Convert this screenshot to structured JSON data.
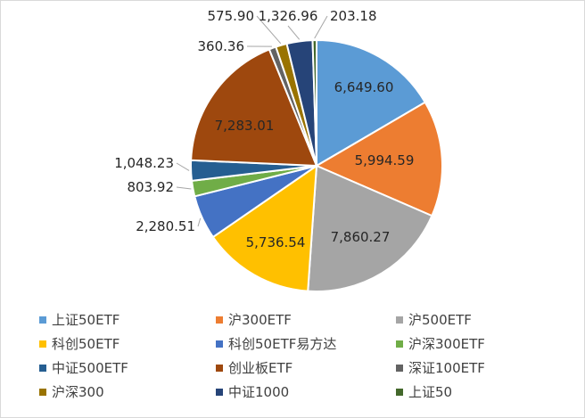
{
  "chart_data": {
    "type": "pie",
    "title": "",
    "series": [
      {
        "name": "上证50ETF",
        "value": 6649.6,
        "label": "6,649.60",
        "color": "#5b9bd5"
      },
      {
        "name": "沪300ETF",
        "value": 5994.59,
        "label": "5,994.59",
        "color": "#ed7d31"
      },
      {
        "name": "沪500ETF",
        "value": 7860.27,
        "label": "7,860.27",
        "color": "#a5a5a5"
      },
      {
        "name": "科创50ETF",
        "value": 5736.54,
        "label": "5,736.54",
        "color": "#ffc000"
      },
      {
        "name": "科创50ETF易方达",
        "value": 2280.51,
        "label": "2,280.51",
        "color": "#4472c4"
      },
      {
        "name": "沪深300ETF",
        "value": 803.92,
        "label": "803.92",
        "color": "#70ad47"
      },
      {
        "name": "中证500ETF",
        "value": 1048.23,
        "label": "1,048.23",
        "color": "#255e91"
      },
      {
        "name": "创业板ETF",
        "value": 7283.01,
        "label": "7,283.01",
        "color": "#9e480e"
      },
      {
        "name": "深证100ETF",
        "value": 360.36,
        "label": "360.36",
        "color": "#636363"
      },
      {
        "name": "沪深300",
        "value": 575.9,
        "label": "575.90",
        "color": "#997300"
      },
      {
        "name": "中证1000",
        "value": 1326.96,
        "label": "1,326.96",
        "color": "#264478"
      },
      {
        "name": "上证50",
        "value": 203.18,
        "label": "203.18",
        "color": "#43682b"
      }
    ],
    "legend_position": "bottom"
  }
}
